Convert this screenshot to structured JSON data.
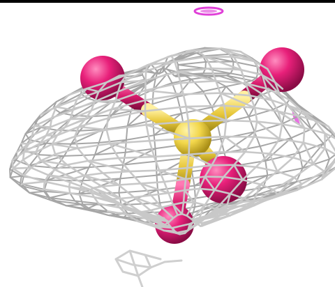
{
  "scene": {
    "background": "#ffffff",
    "border_color": "#000000",
    "mesh_color": "#c8c8c8",
    "mesh_dark_color": "#a6a6a6",
    "density_color": "#e040d8",
    "atom_colors": {
      "central": "#f2d64a",
      "ligand": "#e8207a"
    },
    "bond_color": "#e8c83c",
    "ghost_color": "#cfcfcf"
  }
}
